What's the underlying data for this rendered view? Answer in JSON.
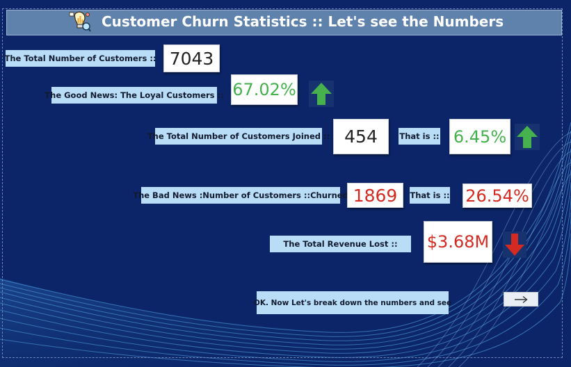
{
  "header": {
    "title": "Customer Churn Statistics :: Let's see the Numbers",
    "logo_icon": "analytics-lightbulb-icon"
  },
  "stats": {
    "total_customers": {
      "label": "The Total Number of Customers   ::",
      "value": "7043"
    },
    "loyal": {
      "label": "The Good News: The Loyal Customers  ::",
      "value": "67.02%",
      "trend": "up"
    },
    "joined": {
      "label": "The Total Number of Customers Joined ::",
      "value": "454",
      "that_is_label": "That is ::",
      "percent": "6.45%",
      "trend": "up"
    },
    "churned": {
      "label": "The Bad News :Number of Customers ::Churned",
      "value": "1869",
      "that_is_label": "That is ::",
      "percent": "26.54%"
    },
    "revenue_lost": {
      "label": "The Total Revenue Lost ::",
      "value": "$3.68M",
      "trend": "down"
    }
  },
  "footer": {
    "prompt": "OK. Now Let's break down the numbers and see",
    "next_icon": "arrow-right-icon"
  },
  "colors": {
    "background": "#0b2568",
    "title_bar": "#5f82ac",
    "label_bg": "#b9dcf7",
    "good": "#44b24c",
    "bad": "#d42a22"
  }
}
